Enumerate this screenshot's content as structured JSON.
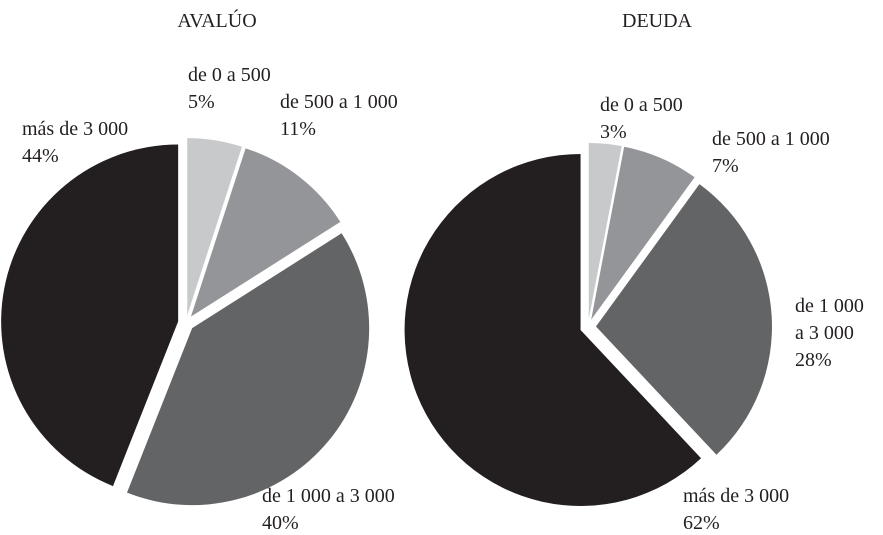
{
  "chart_data": [
    {
      "type": "pie",
      "title": "AVALÚO",
      "categories": [
        "de 0 a 500",
        "de 500 a 1 000",
        "de 1 000 a 3 000",
        "más de 3 000"
      ],
      "values": [
        5,
        11,
        40,
        44
      ],
      "value_labels": [
        "5%",
        "11%",
        "40%",
        "44%"
      ],
      "colors": [
        "#c8c9cb",
        "#939598",
        "#636466",
        "#231f20"
      ]
    },
    {
      "type": "pie",
      "title": "DEUDA",
      "categories": [
        "de 0 a 500",
        "de 500 a 1 000",
        "de 1 000 a 3 000",
        "más de 3 000"
      ],
      "values": [
        3,
        7,
        28,
        62
      ],
      "value_labels": [
        "3%",
        "7%",
        "28%",
        "62%"
      ],
      "colors": [
        "#c8c9cb",
        "#939598",
        "#636466",
        "#231f20"
      ]
    }
  ]
}
